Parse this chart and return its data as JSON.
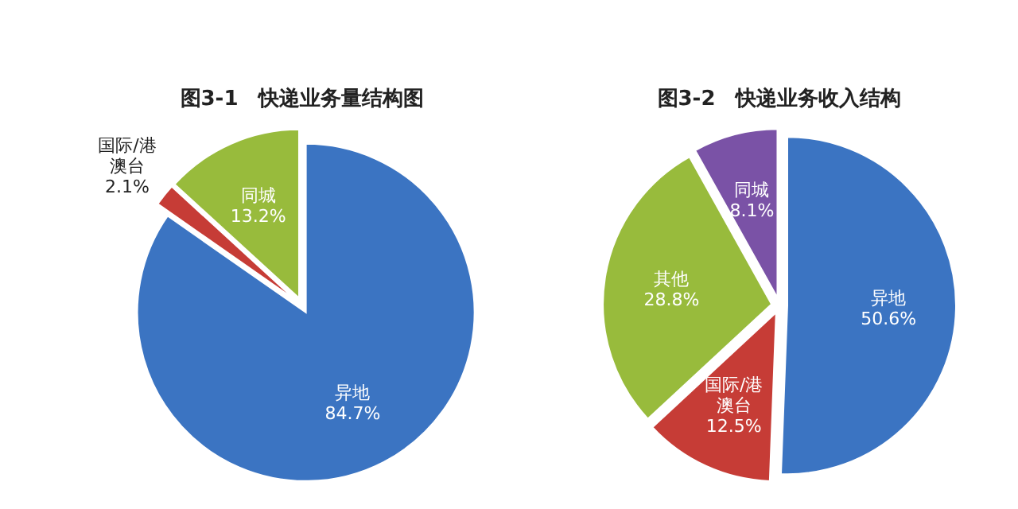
{
  "chart_data": [
    {
      "type": "pie",
      "title": "图3-1　快递业务量结构图",
      "categories": [
        "异地",
        "国际/港澳台",
        "同城"
      ],
      "values": [
        84.7,
        2.1,
        13.2
      ],
      "value_labels": [
        "84.7%",
        "2.1%",
        "13.2%"
      ],
      "colors": [
        "#3b74c2",
        "#c63c36",
        "#98bb3c"
      ]
    },
    {
      "type": "pie",
      "title": "图3-2　快递业务收入结构",
      "categories": [
        "异地",
        "国际/港澳台",
        "其他",
        "同城"
      ],
      "values": [
        50.6,
        12.5,
        28.8,
        8.1
      ],
      "value_labels": [
        "50.6%",
        "12.5%",
        "28.8%",
        "8.1%"
      ],
      "colors": [
        "#3b74c2",
        "#c63c36",
        "#98bb3c",
        "#7a52a6"
      ]
    }
  ]
}
